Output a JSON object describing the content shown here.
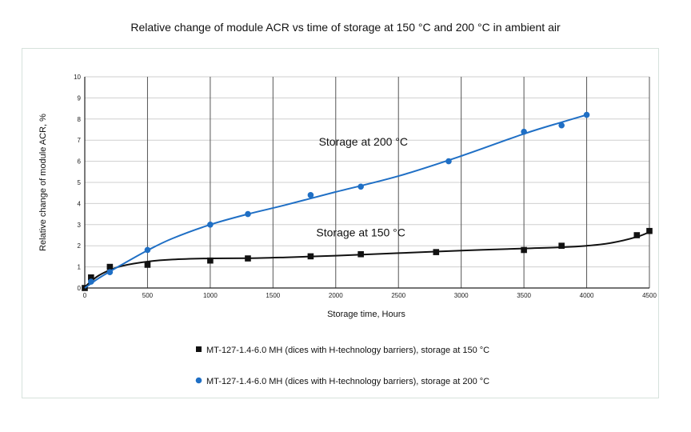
{
  "chart_data": {
    "type": "line",
    "title": "Relative change of module ACR vs time of storage at 150 °C and 200 °C in ambient air",
    "xlabel": "Storage time, Hours",
    "ylabel": "Relative change of module ACR, %",
    "xlim": [
      0,
      4500
    ],
    "ylim": [
      0,
      10
    ],
    "xticks": [
      0,
      500,
      1000,
      1500,
      2000,
      2500,
      3000,
      3500,
      4000,
      4500
    ],
    "yticks": [
      0,
      1,
      2,
      3,
      4,
      5,
      6,
      7,
      8,
      9,
      10
    ],
    "grid": true,
    "series": [
      {
        "name": "MT-127-1.4-6.0 MH (dices with H-technology barriers), storage at 150 °C",
        "marker": "square",
        "color": "#111111",
        "x": [
          0,
          50,
          200,
          500,
          1000,
          1300,
          1800,
          2200,
          2800,
          3500,
          3800,
          4400,
          4500
        ],
        "y": [
          0.0,
          0.5,
          1.0,
          1.1,
          1.3,
          1.4,
          1.5,
          1.6,
          1.7,
          1.8,
          2.0,
          2.5,
          2.7
        ],
        "trend_x": [
          0,
          100,
          200,
          300,
          500,
          700,
          1000,
          1300,
          1600,
          2000,
          2500,
          3000,
          3500,
          3800,
          4000,
          4200,
          4400,
          4500
        ],
        "trend_y": [
          0.05,
          0.55,
          0.85,
          1.05,
          1.25,
          1.35,
          1.4,
          1.41,
          1.45,
          1.53,
          1.65,
          1.77,
          1.87,
          1.93,
          2.0,
          2.14,
          2.42,
          2.65
        ]
      },
      {
        "name": "MT-127-1.4-6.0 MH (dices with H-technology barriers), storage at 200 °C",
        "marker": "circle",
        "color": "#1f6fc5",
        "x": [
          50,
          200,
          500,
          1000,
          1300,
          1800,
          2200,
          2900,
          3500,
          3800,
          4000
        ],
        "y": [
          0.3,
          0.75,
          1.8,
          3.0,
          3.5,
          4.4,
          4.8,
          6.0,
          7.4,
          7.7,
          8.2
        ],
        "trend_x": [
          0,
          100,
          200,
          300,
          500,
          700,
          1000,
          1300,
          1600,
          2000,
          2500,
          3000,
          3500,
          3800,
          4000
        ],
        "trend_y": [
          0.0,
          0.42,
          0.78,
          1.12,
          1.78,
          2.35,
          3.0,
          3.5,
          3.93,
          4.55,
          5.3,
          6.25,
          7.3,
          7.85,
          8.2
        ]
      }
    ],
    "annotations": [
      {
        "text": "Storage at 200 °C",
        "x": 2220,
        "y": 6.75
      },
      {
        "text": "Storage at 150 °C",
        "x": 2200,
        "y": 2.45
      }
    ],
    "legend_position": "bottom"
  }
}
